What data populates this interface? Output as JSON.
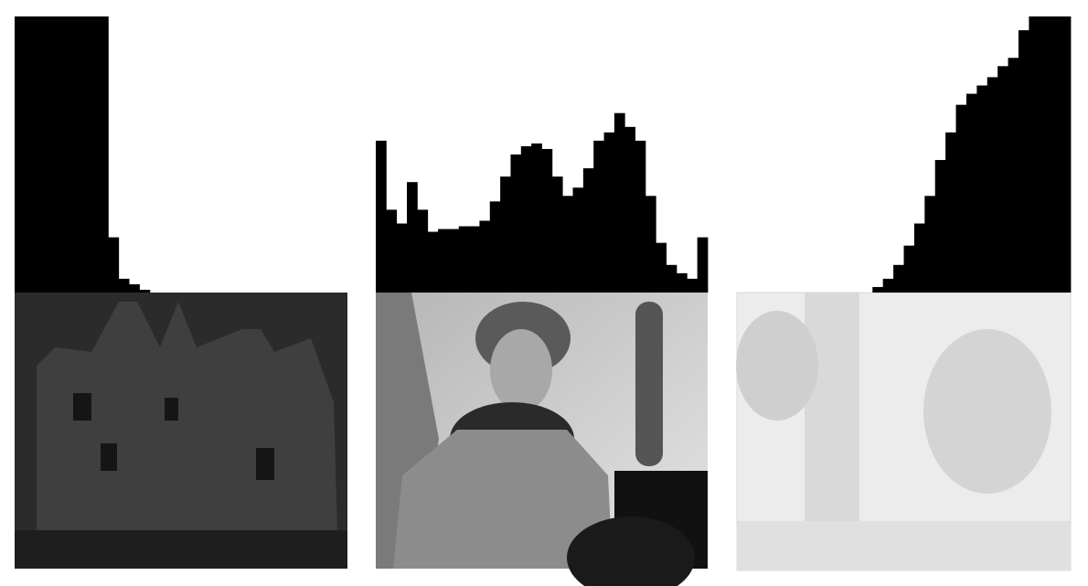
{
  "chart_data": [
    {
      "type": "histogram",
      "color": "#000000",
      "ylim": [
        0,
        100
      ],
      "bins": [
        0,
        8,
        16,
        24,
        32,
        40,
        48,
        56,
        64,
        72,
        80,
        88,
        96,
        104,
        112,
        120,
        128,
        136,
        144,
        152,
        160,
        168,
        176,
        184,
        192,
        200,
        208,
        216,
        224,
        232,
        240,
        248,
        256
      ],
      "values": [
        100,
        100,
        100,
        100,
        100,
        100,
        100,
        100,
        100,
        20,
        5,
        3,
        1,
        0,
        0,
        0,
        0,
        0,
        0,
        0,
        0,
        0,
        0,
        0,
        0,
        0,
        0,
        0,
        0,
        0,
        0,
        0
      ]
    },
    {
      "type": "histogram",
      "color": "#000000",
      "ylim": [
        0,
        100
      ],
      "bins": [
        0,
        8,
        16,
        24,
        32,
        40,
        48,
        56,
        64,
        72,
        80,
        88,
        96,
        104,
        112,
        120,
        128,
        136,
        144,
        152,
        160,
        168,
        176,
        184,
        192,
        200,
        208,
        216,
        224,
        232,
        240,
        248,
        256
      ],
      "values": [
        55,
        30,
        25,
        40,
        30,
        22,
        23,
        23,
        24,
        24,
        26,
        33,
        42,
        50,
        53,
        54,
        52,
        42,
        35,
        38,
        45,
        55,
        58,
        65,
        60,
        55,
        35,
        18,
        10,
        7,
        5,
        20
      ]
    },
    {
      "type": "histogram",
      "color": "#000000",
      "ylim": [
        0,
        100
      ],
      "bins": [
        0,
        8,
        16,
        24,
        32,
        40,
        48,
        56,
        64,
        72,
        80,
        88,
        96,
        104,
        112,
        120,
        128,
        136,
        144,
        152,
        160,
        168,
        176,
        184,
        192,
        200,
        208,
        216,
        224,
        232,
        240,
        248,
        256
      ],
      "values": [
        0,
        0,
        0,
        0,
        0,
        0,
        0,
        0,
        0,
        0,
        0,
        0,
        0,
        2,
        5,
        10,
        17,
        25,
        35,
        48,
        58,
        68,
        72,
        75,
        78,
        82,
        85,
        95,
        100,
        100,
        100,
        100
      ]
    }
  ]
}
